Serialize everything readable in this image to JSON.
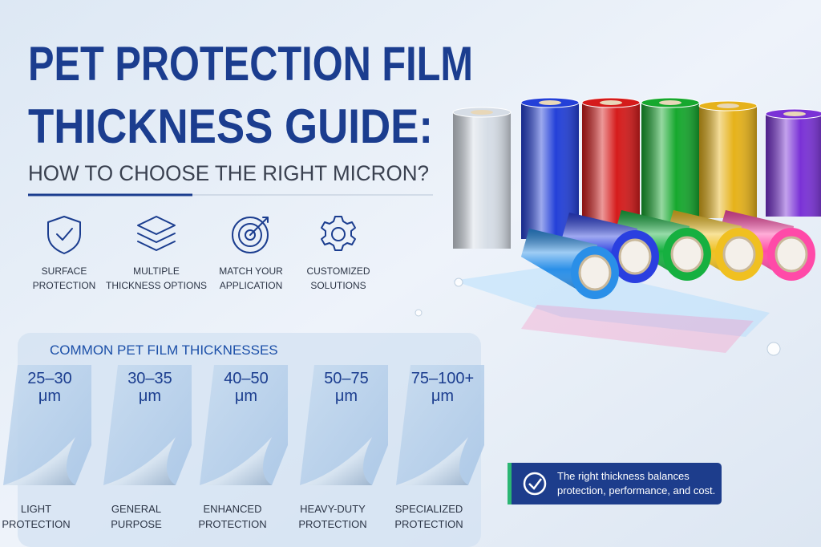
{
  "header": {
    "title_lines": [
      "PET PROTECTION FILM",
      "THICKNESS GUIDE:"
    ],
    "subtitle": "HOW TO CHOOSE THE RIGHT MICRON?"
  },
  "features": [
    {
      "lines": [
        "SURFACE",
        "PROTECTION"
      ]
    },
    {
      "lines": [
        "MULTIPLE",
        "THICKNESS OPTIONS"
      ]
    },
    {
      "lines": [
        "MATCH YOUR",
        "APPLICATION"
      ]
    },
    {
      "lines": [
        "CUSTOMIZED",
        "SOLUTIONS"
      ]
    }
  ],
  "thicknesses": {
    "title": "COMMON PET FILM THICKNESSES",
    "cards": [
      {
        "range": [
          "25–30",
          "μm"
        ],
        "label": [
          "LIGHT",
          "PROTECTION"
        ]
      },
      {
        "range": [
          "30–35",
          "μm"
        ],
        "label": [
          "GENERAL",
          "PURPOSE"
        ]
      },
      {
        "range": [
          "40–50",
          "μm"
        ],
        "label": [
          "ENHANCED",
          "PROTECTION"
        ]
      },
      {
        "range": [
          "50–75",
          "μm"
        ],
        "label": [
          "HEAVY-DUTY",
          "PROTECTION"
        ]
      },
      {
        "range": [
          "75–100+",
          "μm"
        ],
        "label": [
          "SPECIALIZED",
          "PROTECTION"
        ]
      }
    ]
  },
  "callout": {
    "lines": [
      "The right thickness balances",
      "protection, performance, and cost."
    ]
  }
}
